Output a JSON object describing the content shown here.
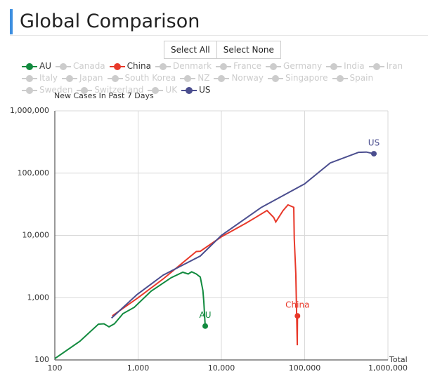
{
  "title": "Global Comparison",
  "controls": {
    "select_all": "Select All",
    "select_none": "Select None"
  },
  "chart_data": {
    "type": "line",
    "y_label": "New Cases In Past 7 Days",
    "x_label": "Total",
    "xscale": "log",
    "yscale": "log",
    "grid": true,
    "xlim": [
      100,
      1000000
    ],
    "ylim": [
      100,
      1000000
    ],
    "xticks": [
      100,
      {
        "value": 1000,
        "label": "1,000"
      },
      {
        "value": 10000,
        "label": "10,000"
      },
      {
        "value": 100000,
        "label": "100,000"
      },
      {
        "value": 1000000,
        "label": "1,000,000"
      }
    ],
    "yticks": [
      100,
      {
        "value": 1000,
        "label": "1,000"
      },
      {
        "value": 10000,
        "label": "10,000"
      },
      {
        "value": 100000,
        "label": "100,000"
      },
      {
        "value": 1000000,
        "label": "1,000,000"
      }
    ],
    "series": [
      {
        "name": "AU",
        "color": "#118a3e",
        "x": [
          100,
          200,
          334,
          390,
          447,
          520,
          659,
          900,
          1430,
          2500,
          3440,
          4000,
          4400,
          5000,
          5580,
          6000,
          6150,
          6300,
          6400
        ],
        "values": [
          105,
          200,
          376,
          380,
          340,
          380,
          554,
          700,
          1270,
          2100,
          2560,
          2400,
          2600,
          2400,
          2140,
          1300,
          861,
          500,
          350
        ]
      },
      {
        "name": "Canada",
        "color": "#cccccc"
      },
      {
        "name": "China",
        "color": "#e8392a",
        "x": [
          490,
          1000,
          2000,
          5000,
          5580,
          10000,
          19700,
          25000,
          35300,
          42500,
          45000,
          55000,
          63100,
          74000,
          75000,
          78300,
          80000,
          81500,
          82000
        ],
        "values": [
          510,
          1000,
          2000,
          5500,
          5570,
          9500,
          15700,
          19000,
          25100,
          19400,
          16400,
          25000,
          30900,
          28200,
          8900,
          2430,
          600,
          172,
          510
        ]
      },
      {
        "name": "Denmark",
        "color": "#cccccc"
      },
      {
        "name": "France",
        "color": "#cccccc"
      },
      {
        "name": "Germany",
        "color": "#cccccc"
      },
      {
        "name": "India",
        "color": "#cccccc"
      },
      {
        "name": "Iran",
        "color": "#cccccc"
      },
      {
        "name": "Italy",
        "color": "#cccccc"
      },
      {
        "name": "Japan",
        "color": "#cccccc"
      },
      {
        "name": "South Korea",
        "color": "#cccccc"
      },
      {
        "name": "NZ",
        "color": "#cccccc"
      },
      {
        "name": "Norway",
        "color": "#cccccc"
      },
      {
        "name": "Singapore",
        "color": "#cccccc"
      },
      {
        "name": "Spain",
        "color": "#cccccc"
      },
      {
        "name": "Sweden",
        "color": "#cccccc"
      },
      {
        "name": "Switzerland",
        "color": "#cccccc"
      },
      {
        "name": "UK",
        "color": "#cccccc"
      },
      {
        "name": "US",
        "color": "#4b4e8f",
        "x": [
          480,
          970,
          2000,
          5580,
          10000,
          30000,
          100000,
          203000,
          443000,
          550000,
          678000
        ],
        "values": [
          470,
          1120,
          2300,
          4660,
          10000,
          28000,
          67300,
          146000,
          216000,
          218000,
          205000
        ]
      }
    ]
  }
}
